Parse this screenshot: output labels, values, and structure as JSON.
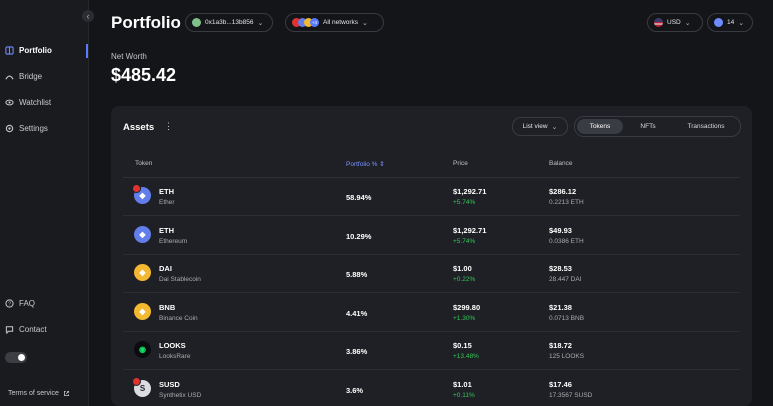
{
  "sidebar": {
    "nav": [
      {
        "label": "Portfolio",
        "icon": "portfolio-icon"
      },
      {
        "label": "Bridge",
        "icon": "bridge-icon"
      },
      {
        "label": "Watchlist",
        "icon": "eye-icon"
      },
      {
        "label": "Settings",
        "icon": "gear-icon"
      }
    ],
    "bottom": [
      {
        "label": "FAQ",
        "icon": "help-icon"
      },
      {
        "label": "Contact",
        "icon": "chat-icon"
      }
    ],
    "terms": "Terms of service"
  },
  "header": {
    "title": "Portfolio",
    "address": "0x1a3b...13b856",
    "network": "All networks",
    "network_badge": "+4",
    "currency": "USD",
    "notifications": "14"
  },
  "networth": {
    "label": "Net Worth",
    "value": "$485.42"
  },
  "assets": {
    "title": "Assets",
    "view": "List view",
    "tabs": [
      "Tokens",
      "NFTs",
      "Transactions"
    ],
    "active_tab": "Tokens",
    "columns": [
      "Token",
      "Portfolio %",
      "Price",
      "Balance"
    ],
    "rows": [
      {
        "symbol": "ETH",
        "name": "Ether",
        "pct": "58.94%",
        "price": "$1,292.71",
        "change": "+5.74%",
        "balance": "$286.12",
        "amount": "0.2213 ETH",
        "color": "#627eea",
        "glyph": "◆",
        "badge": true
      },
      {
        "symbol": "ETH",
        "name": "Ethereum",
        "pct": "10.29%",
        "price": "$1,292.71",
        "change": "+5.74%",
        "balance": "$49.93",
        "amount": "0.0386 ETH",
        "color": "#627eea",
        "glyph": "◆",
        "badge": false
      },
      {
        "symbol": "DAI",
        "name": "Dai Stablecoin",
        "pct": "5.88%",
        "price": "$1.00",
        "change": "+0.22%",
        "balance": "$28.53",
        "amount": "28.447 DAI",
        "color": "#f4b731",
        "glyph": "◈",
        "badge": false
      },
      {
        "symbol": "BNB",
        "name": "Binance Coin",
        "pct": "4.41%",
        "price": "$299.80",
        "change": "+1.30%",
        "balance": "$21.38",
        "amount": "0.0713 BNB",
        "color": "#f3ba2f",
        "glyph": "◆",
        "badge": false
      },
      {
        "symbol": "LOOKS",
        "name": "LooksRare",
        "pct": "3.86%",
        "price": "$0.15",
        "change": "+13.48%",
        "balance": "$18.72",
        "amount": "125 LOOKS",
        "color": "#0ce466",
        "glyph": "◉",
        "badge": false
      },
      {
        "symbol": "SUSD",
        "name": "Synthetix USD",
        "pct": "3.6%",
        "price": "$1.01",
        "change": "+0.11%",
        "balance": "$17.46",
        "amount": "17.3567 SUSD",
        "color": "#dcdde2",
        "glyph": "S",
        "badge": true
      }
    ]
  }
}
